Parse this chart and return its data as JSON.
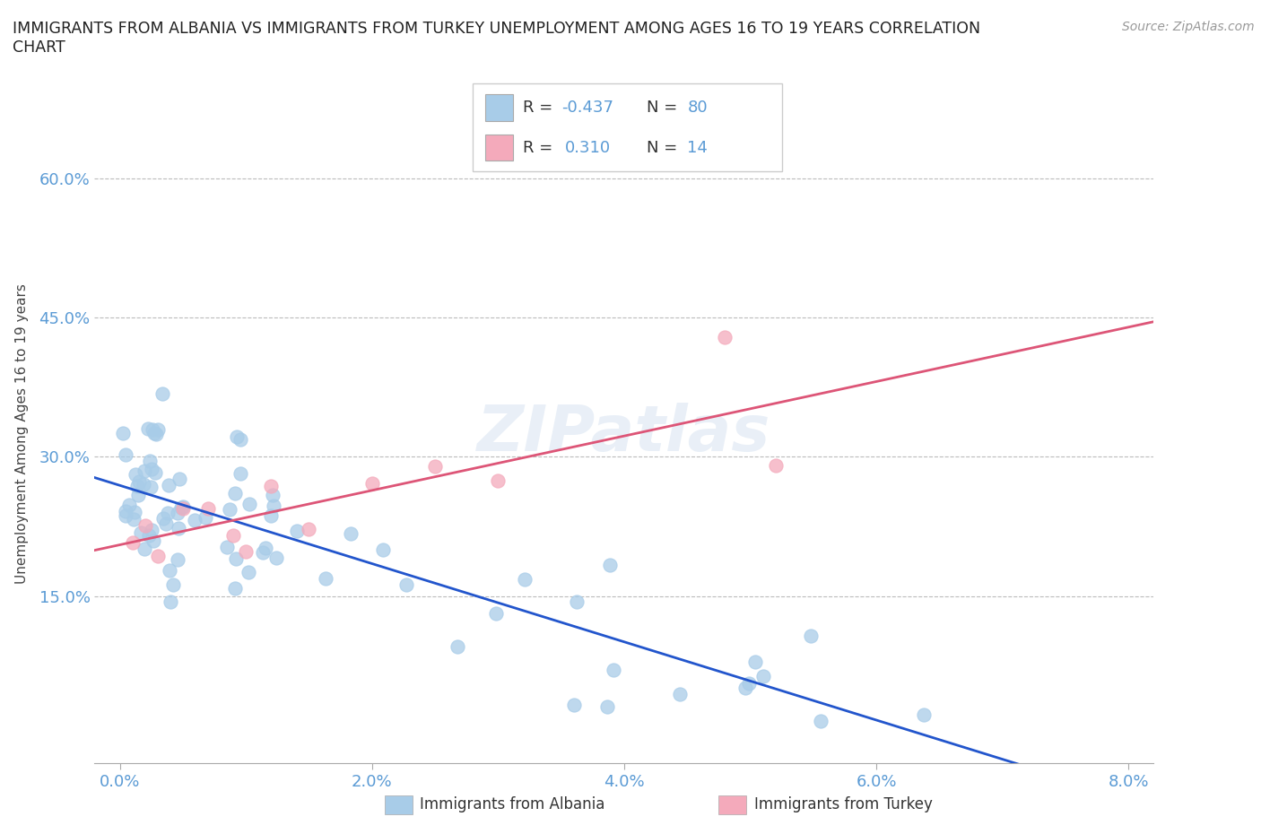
{
  "title": "IMMIGRANTS FROM ALBANIA VS IMMIGRANTS FROM TURKEY UNEMPLOYMENT AMONG AGES 16 TO 19 YEARS CORRELATION\nCHART",
  "source": "Source: ZipAtlas.com",
  "xlabel_ticks": [
    "0.0%",
    "2.0%",
    "4.0%",
    "6.0%",
    "8.0%"
  ],
  "xlabel_vals": [
    0.0,
    0.02,
    0.04,
    0.06,
    0.08
  ],
  "ylabel_ticks": [
    "15.0%",
    "30.0%",
    "45.0%",
    "60.0%"
  ],
  "ylabel_vals": [
    0.15,
    0.3,
    0.45,
    0.6
  ],
  "albania_color": "#A8CCE8",
  "turkey_color": "#F4AABB",
  "albania_line_color": "#2255CC",
  "turkey_line_color": "#DD5577",
  "albania_R": -0.437,
  "albania_N": 80,
  "turkey_R": 0.31,
  "turkey_N": 14,
  "albania_label": "Immigrants from Albania",
  "turkey_label": "Immigrants from Turkey",
  "xlim": [
    -0.002,
    0.082
  ],
  "ylim": [
    -0.03,
    0.68
  ],
  "watermark": "ZIPatlas",
  "background_color": "#FFFFFF",
  "grid_color": "#BBBBBB",
  "title_color": "#222222",
  "axis_label_color": "#5B9BD5",
  "legend_r_color": "#333333",
  "legend_n_color": "#5B9BD5"
}
